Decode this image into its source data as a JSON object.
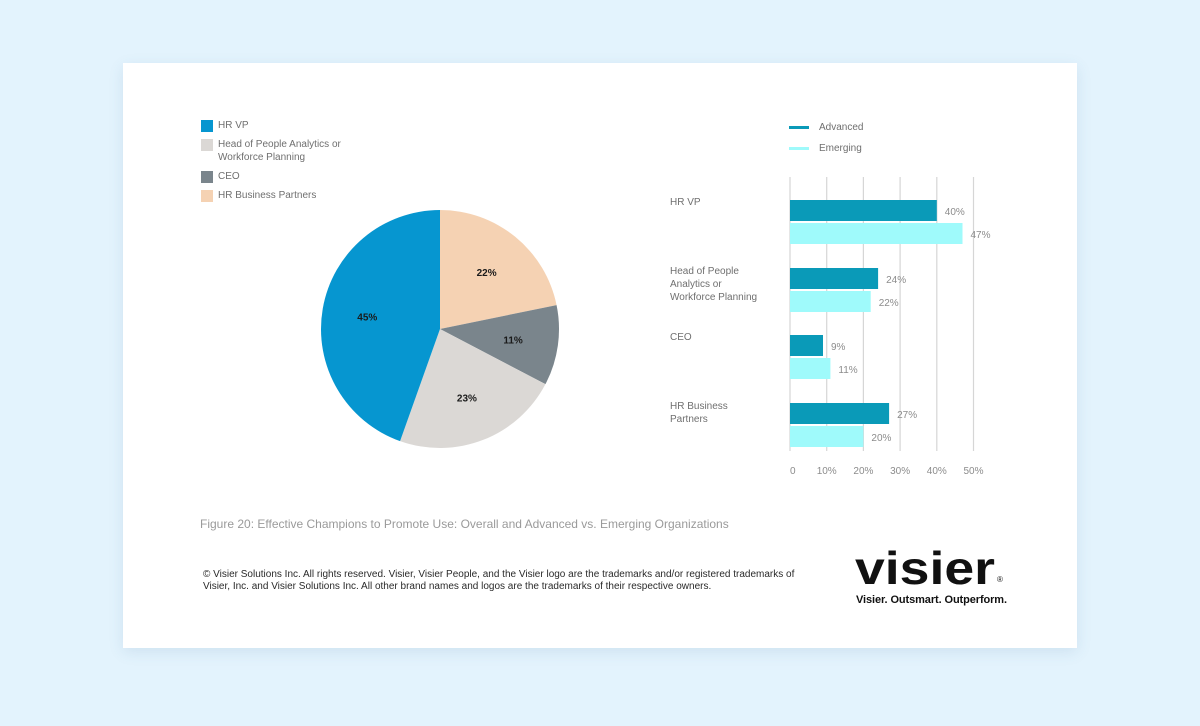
{
  "chart_data": [
    {
      "type": "pie",
      "legend": [
        {
          "label": "HR VP",
          "color": "#0696d0"
        },
        {
          "label": "Head of People Analytics or Workforce Planning",
          "color": "#dbd8d5"
        },
        {
          "label": "CEO",
          "color": "#7a858c"
        },
        {
          "label": "HR Business Partners",
          "color": "#f5d2b3"
        }
      ],
      "slices": [
        {
          "label": "HR Business Partners",
          "value": 22,
          "display": "22%",
          "color": "#f5d2b3"
        },
        {
          "label": "CEO",
          "value": 11,
          "display": "11%",
          "color": "#7a858c"
        },
        {
          "label": "Head of People Analytics or Workforce Planning",
          "value": 23,
          "display": "23%",
          "color": "#dbd8d5"
        },
        {
          "label": "HR VP",
          "value": 45,
          "display": "45%",
          "color": "#0696d0"
        }
      ]
    },
    {
      "type": "bar",
      "orientation": "horizontal",
      "categories": [
        [
          "HR VP"
        ],
        [
          "Head of People",
          "Analytics or",
          "Workforce Planning"
        ],
        [
          "CEO"
        ],
        [
          "HR Business",
          "Partners"
        ]
      ],
      "series": [
        {
          "name": "Advanced",
          "color": "#0a9ab8",
          "values": [
            40,
            24,
            9,
            27
          ],
          "labels": [
            "40%",
            "24%",
            "9%",
            "27%"
          ]
        },
        {
          "name": "Emerging",
          "color": "#9ffafb",
          "values": [
            47,
            22,
            11,
            20
          ],
          "labels": [
            "47%",
            "22%",
            "11%",
            "20%"
          ]
        }
      ],
      "xlim": [
        0,
        50
      ],
      "xticks": [
        0,
        10,
        20,
        30,
        40,
        50
      ],
      "xtick_labels": [
        "0",
        "10%",
        "20%",
        "30%",
        "40%",
        "50%"
      ],
      "grid": true
    }
  ],
  "caption": "Figure 20: Effective Champions to Promote Use: Overall and Advanced vs. Emerging Organizations",
  "copyright": "© Visier Solutions Inc. All rights reserved. Visier, Visier People, and the Visier logo are the trademarks and/or registered trademarks of Visier, Inc. and Visier Solutions Inc. All other brand names and logos are the trademarks of their respective owners.",
  "logo": {
    "text": "visier",
    "tagline": "Visier. Outsmart. Outperform."
  }
}
